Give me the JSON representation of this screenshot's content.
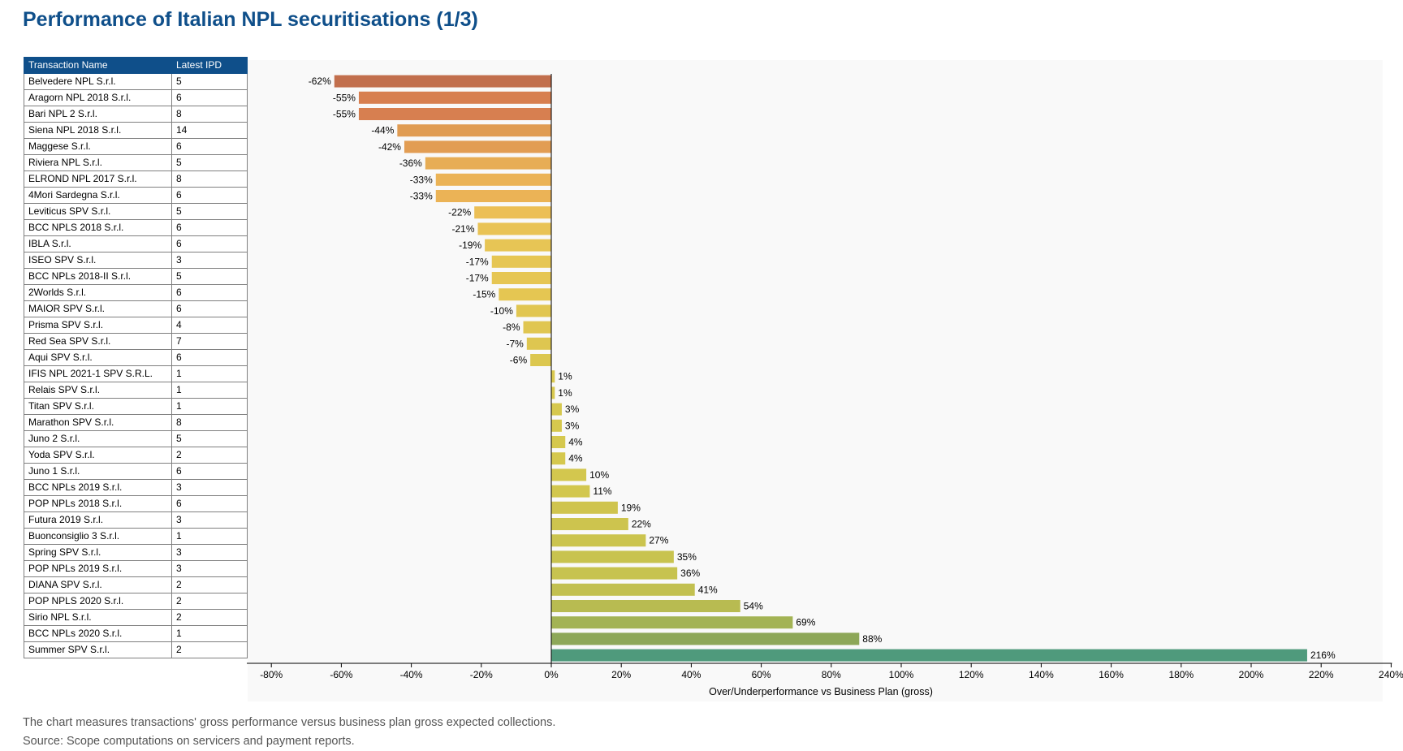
{
  "title": "Performance of Italian NPL securitisations (1/3)",
  "table": {
    "headers": [
      "Transaction Name",
      "Latest IPD"
    ]
  },
  "chart_data": {
    "type": "bar",
    "orientation": "horizontal",
    "title": "",
    "xlabel": "Over/Underperformance vs Business Plan (gross)",
    "ylabel": "",
    "xlim": [
      -80,
      240
    ],
    "x_ticks": [
      -80,
      -60,
      -40,
      -20,
      0,
      20,
      40,
      60,
      80,
      100,
      120,
      140,
      160,
      180,
      200,
      220,
      240
    ],
    "tick_labels": [
      "-80%",
      "-60%",
      "-40%",
      "-20%",
      "0%",
      "20%",
      "40%",
      "60%",
      "80%",
      "100%",
      "120%",
      "140%",
      "160%",
      "180%",
      "200%",
      "220%",
      "240%"
    ],
    "grid": false,
    "categories": [
      "Belvedere NPL S.r.l.",
      "Aragorn NPL 2018 S.r.l.",
      "Bari NPL 2 S.r.l.",
      "Siena NPL 2018 S.r.l.",
      "Maggese S.r.l.",
      "Riviera NPL S.r.l.",
      "ELROND NPL 2017 S.r.l.",
      "4Mori Sardegna S.r.l.",
      "Leviticus SPV S.r.l.",
      "BCC NPLS 2018 S.r.l.",
      "IBLA S.r.l.",
      "ISEO SPV S.r.l.",
      "BCC NPLs 2018-II S.r.l.",
      "2Worlds S.r.l.",
      "MAIOR SPV S.r.l.",
      "Prisma SPV S.r.l.",
      "Red Sea SPV S.r.l.",
      "Aqui SPV S.r.l.",
      "IFIS NPL 2021-1 SPV S.R.L.",
      "Relais SPV S.r.l.",
      "Titan SPV S.r.l.",
      "Marathon SPV S.r.l.",
      "Juno 2 S.r.l.",
      "Yoda SPV S.r.l.",
      "Juno 1 S.r.l.",
      "BCC NPLs 2019 S.r.l.",
      "POP NPLs 2018 S.r.l.",
      "Futura 2019 S.r.l.",
      "Buonconsiglio 3 S.r.l.",
      "Spring SPV S.r.l.",
      "POP NPLs 2019 S.r.l.",
      "DIANA SPV S.r.l.",
      "POP NPLS 2020 S.r.l.",
      "Sirio NPL S.r.l.",
      "BCC NPLs 2020 S.r.l.",
      "Summer SPV S.r.l."
    ],
    "latest_ipd": [
      5,
      6,
      8,
      14,
      6,
      5,
      8,
      6,
      5,
      6,
      6,
      3,
      5,
      6,
      6,
      4,
      7,
      6,
      1,
      1,
      1,
      8,
      5,
      2,
      6,
      3,
      6,
      3,
      1,
      3,
      3,
      2,
      2,
      2,
      1,
      2
    ],
    "values": [
      -62,
      -55,
      -55,
      -44,
      -42,
      -36,
      -33,
      -33,
      -22,
      -21,
      -19,
      -17,
      -17,
      -15,
      -10,
      -8,
      -7,
      -6,
      1,
      1,
      3,
      3,
      4,
      4,
      10,
      11,
      19,
      22,
      27,
      35,
      36,
      41,
      54,
      69,
      88,
      216
    ],
    "data_labels": [
      "-62%",
      "-55%",
      "-55%",
      "-44%",
      "-42%",
      "-36%",
      "-33%",
      "-33%",
      "-22%",
      "-21%",
      "-19%",
      "-17%",
      "-17%",
      "-15%",
      "-10%",
      "-8%",
      "-7%",
      "-6%",
      "1%",
      "1%",
      "3%",
      "3%",
      "4%",
      "4%",
      "10%",
      "11%",
      "19%",
      "22%",
      "27%",
      "35%",
      "36%",
      "41%",
      "54%",
      "69%",
      "88%",
      "216%"
    ],
    "colors": [
      "#c26f4d",
      "#d77f50",
      "#d77f50",
      "#e09c53",
      "#e29d53",
      "#e7ad55",
      "#ebb356",
      "#ebb356",
      "#ecbf56",
      "#e9c355",
      "#e7c555",
      "#e6c653",
      "#e6c653",
      "#e5c652",
      "#e1c651",
      "#e0c651",
      "#dec650",
      "#dcc74f",
      "#d9c84e",
      "#d8c84e",
      "#d6c84e",
      "#d6c84e",
      "#d5c84e",
      "#d5c84e",
      "#d3c74e",
      "#d2c74e",
      "#cfc44e",
      "#cdc44e",
      "#cbc44e",
      "#c8c34f",
      "#c7c34f",
      "#c2c050",
      "#b8bb51",
      "#a3b354",
      "#8da758",
      "#4f9a7c"
    ]
  },
  "notes": [
    "The chart measures transactions' gross performance versus business plan gross expected collections.",
    "Source: Scope computations on servicers and payment reports."
  ]
}
